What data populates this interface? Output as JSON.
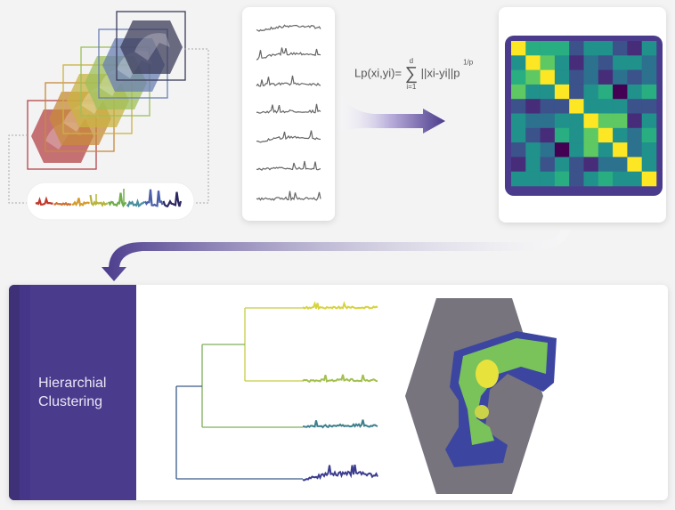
{
  "formula": {
    "lhs": "Lp(xi,yi)=",
    "sum_upper": "d",
    "sum_lower": "i=1",
    "body": "||xi-yi||p",
    "exponent": "1/p"
  },
  "clustering_label_line1": "Hierarchial",
  "clustering_label_line2": "Clustering",
  "colors": {
    "purple": "#4b3b8c",
    "hexagon": "#77747e",
    "leaf_colors": [
      "#d7d33e",
      "#a3c04f",
      "#3d7f8c",
      "#3c3d8f"
    ],
    "slice_colors": [
      "#b5464a",
      "#c8893a",
      "#c9b341",
      "#9cc05a",
      "#6a7fb3",
      "#3b3b5a"
    ]
  },
  "similarity_matrix": [
    [
      1,
      0.6,
      0.65,
      0.65,
      0.3,
      0.45,
      0.5,
      0.3,
      0.1,
      0.55
    ],
    [
      0.55,
      1,
      0.7,
      0.55,
      0.1,
      0.4,
      0.25,
      0.45,
      0.45,
      0.4
    ],
    [
      0.65,
      0.7,
      1,
      0.5,
      0.25,
      0.35,
      0.15,
      0.4,
      0.2,
      0.4
    ],
    [
      0.7,
      0.55,
      0.5,
      1,
      0.25,
      0.45,
      0.6,
      0.05,
      0.5,
      0.6
    ],
    [
      0.3,
      0.1,
      0.2,
      0.25,
      1,
      0.55,
      0.5,
      0.55,
      0.25,
      0.25
    ],
    [
      0.45,
      0.4,
      0.35,
      0.45,
      0.55,
      1,
      0.7,
      0.7,
      0.15,
      0.45
    ],
    [
      0.5,
      0.25,
      0.15,
      0.6,
      0.5,
      0.7,
      1,
      0.45,
      0.4,
      0.6
    ],
    [
      0.3,
      0.45,
      0.4,
      0.05,
      0.55,
      0.7,
      0.45,
      1,
      0.35,
      0.45
    ],
    [
      0.15,
      0.45,
      0.2,
      0.5,
      0.25,
      0.15,
      0.4,
      0.35,
      1,
      0.55
    ],
    [
      0.55,
      0.45,
      0.45,
      0.6,
      0.25,
      0.45,
      0.6,
      0.45,
      0.55,
      1
    ]
  ]
}
